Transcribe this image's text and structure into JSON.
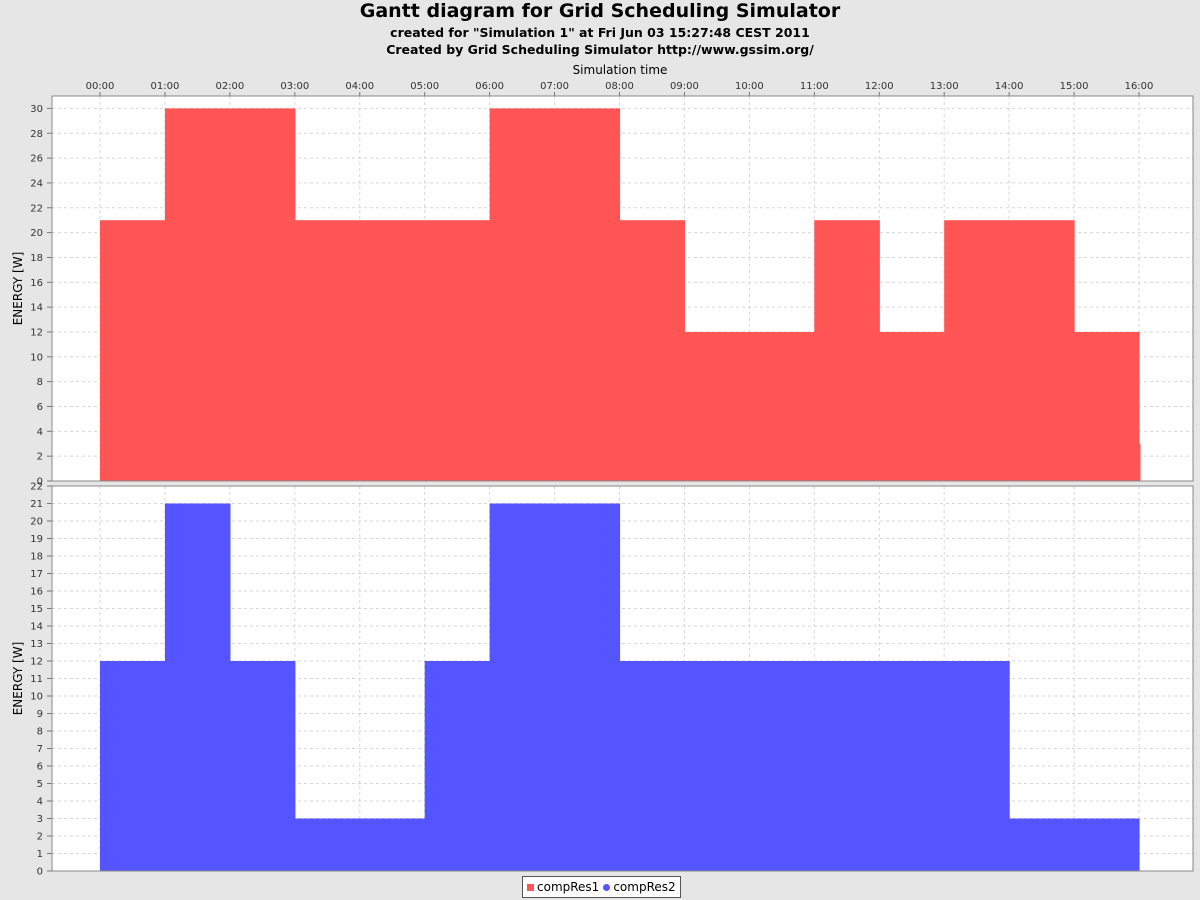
{
  "header": {
    "title": "Gantt diagram for Grid Scheduling Simulator",
    "subtitle1": "created for \"Simulation 1\" at Fri Jun 03 15:27:48 CEST 2011",
    "subtitle2": "Created by Grid Scheduling Simulator http://www.gssim.org/"
  },
  "chart_data": [
    {
      "type": "area",
      "xlabel": "Simulation time",
      "ylabel": "ENERGY [W]",
      "x_ticks": [
        "00:00",
        "01:00",
        "02:00",
        "03:00",
        "04:00",
        "05:00",
        "06:00",
        "07:00",
        "08:00",
        "09:00",
        "10:00",
        "11:00",
        "12:00",
        "13:00",
        "14:00",
        "15:00",
        "16:00"
      ],
      "xlim_hours": [
        0,
        16
      ],
      "ylim": [
        0,
        31
      ],
      "y_ticks": [
        0,
        2,
        4,
        6,
        8,
        10,
        12,
        14,
        16,
        18,
        20,
        22,
        24,
        26,
        28,
        30
      ],
      "grid": true,
      "series": [
        {
          "name": "compRes1",
          "color": "#ff5555",
          "step_x_hours": [
            0,
            1,
            3,
            6,
            8,
            9,
            11,
            12,
            13,
            15,
            16
          ],
          "values": [
            21,
            30,
            21,
            30,
            21,
            12,
            21,
            12,
            21,
            12
          ],
          "end_value": 3
        }
      ]
    },
    {
      "type": "area",
      "xlabel": "",
      "ylabel": "ENERGY [W]",
      "xlim_hours": [
        0,
        16
      ],
      "ylim": [
        0,
        22
      ],
      "y_ticks": [
        0,
        1,
        2,
        3,
        4,
        5,
        6,
        7,
        8,
        9,
        10,
        11,
        12,
        13,
        14,
        15,
        16,
        17,
        18,
        19,
        20,
        21,
        22
      ],
      "grid": true,
      "series": [
        {
          "name": "compRes2",
          "color": "#5555ff",
          "step_x_hours": [
            0,
            1,
            2,
            3,
            5,
            6,
            8,
            14,
            16
          ],
          "values": [
            12,
            21,
            12,
            3,
            12,
            21,
            12,
            3
          ]
        }
      ]
    }
  ],
  "legend": {
    "placement": "bottom-center",
    "items": [
      {
        "label": "compRes1",
        "color": "#ff5555",
        "shape": "square"
      },
      {
        "label": "compRes2",
        "color": "#5555ff",
        "shape": "circle"
      }
    ]
  }
}
